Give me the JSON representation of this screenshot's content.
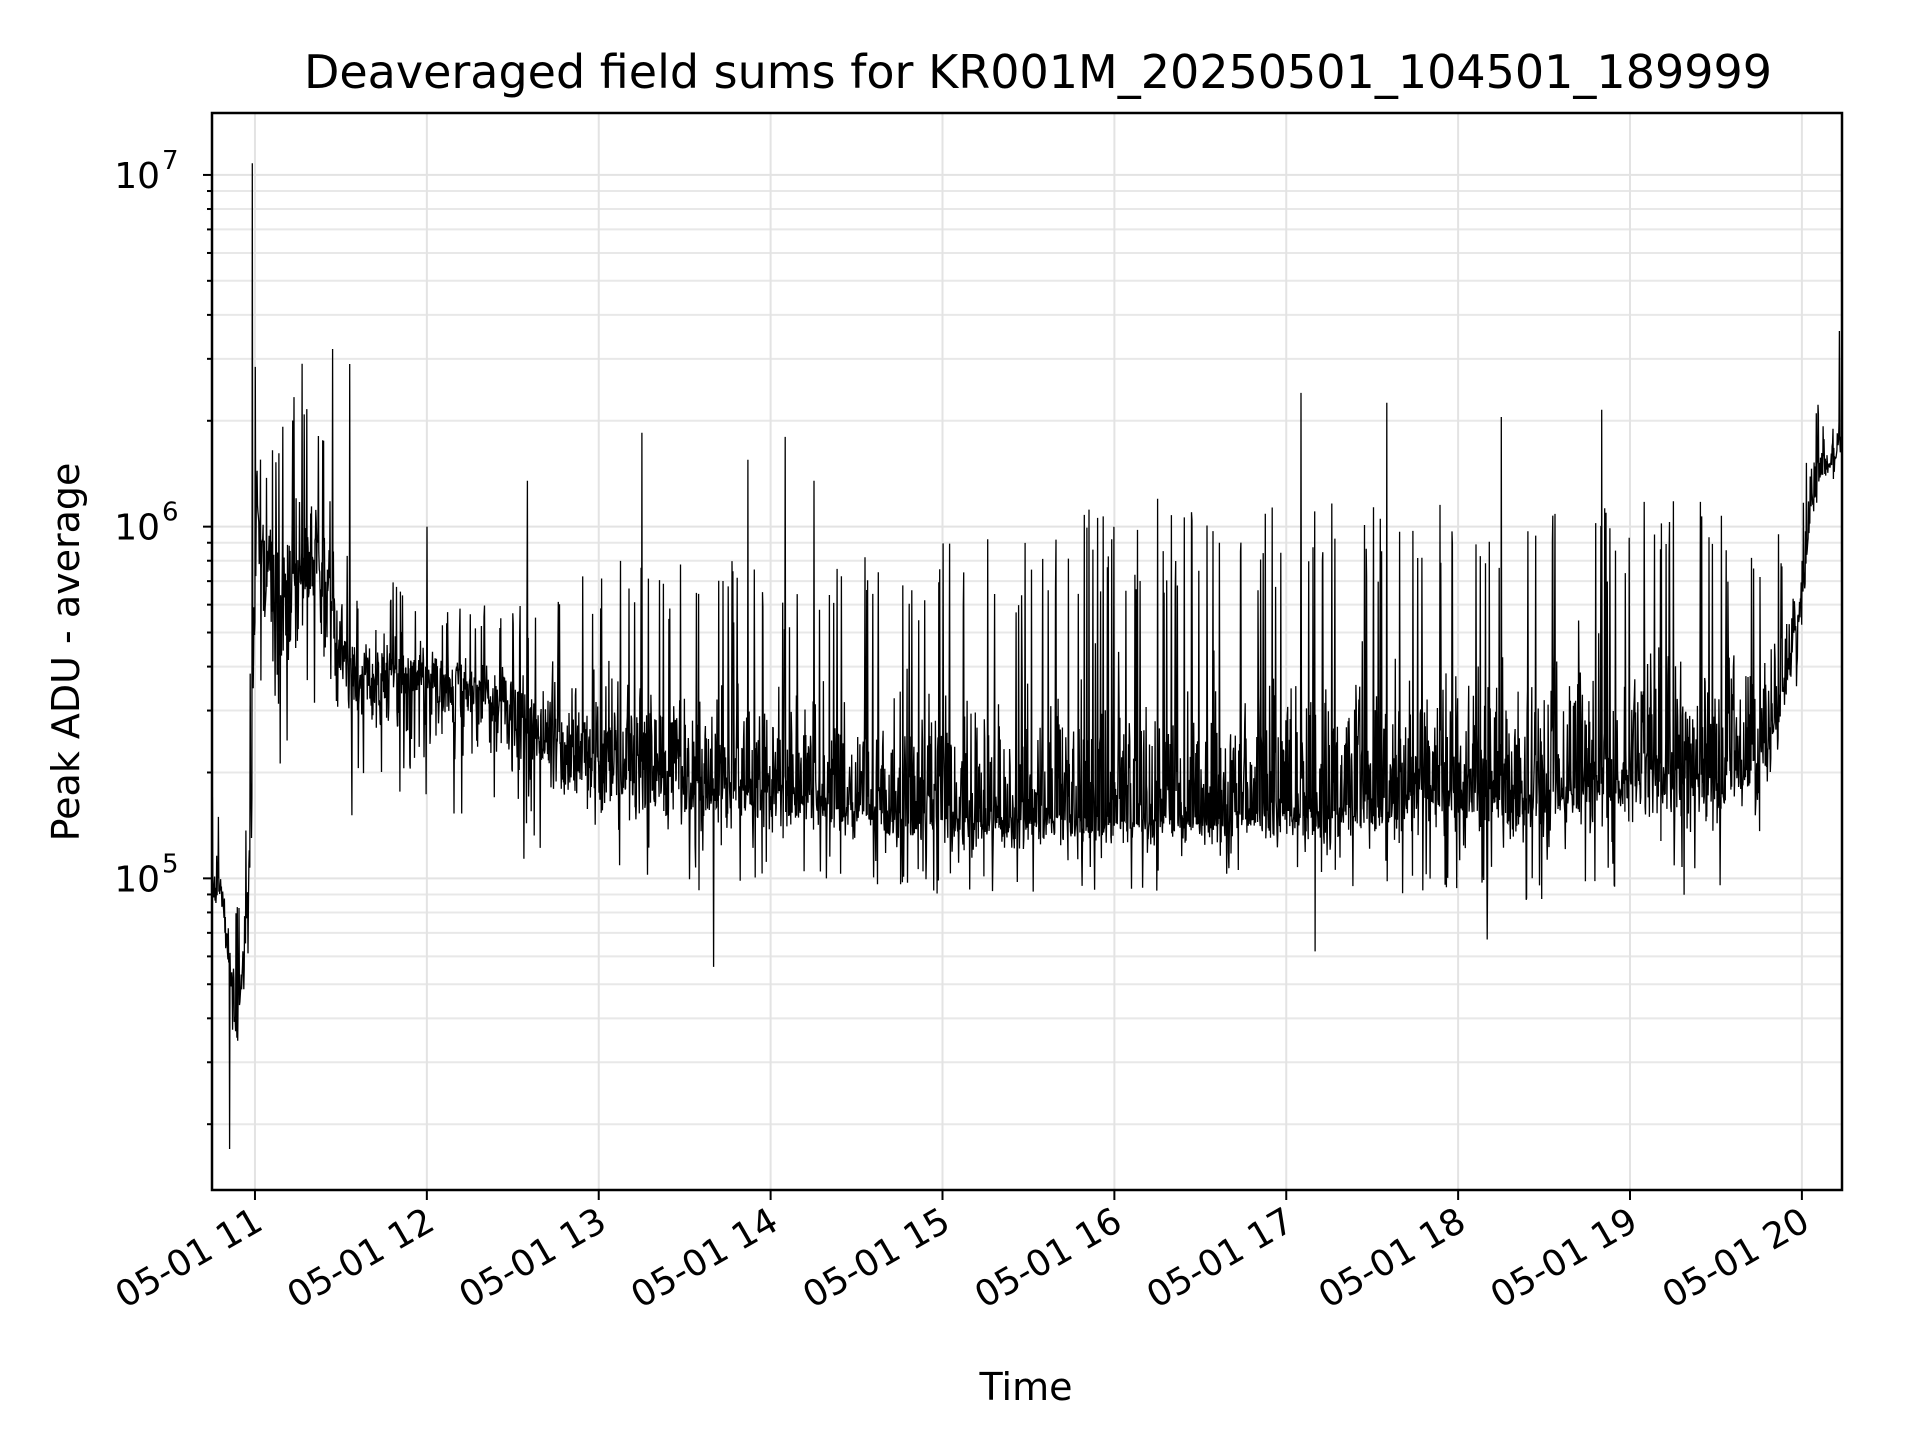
{
  "chart_data": {
    "type": "line",
    "title": "Deaveraged field sums for KR001M_20250501_104501_189999",
    "xlabel": "Time",
    "ylabel": "Peak ADU - average",
    "y_scale": "log",
    "xlim": [
      "2025-05-01 10:45",
      "2025-05-01 20:14"
    ],
    "ylim": [
      13000,
      15000000
    ],
    "grid": "major and minor, both axes",
    "line_color": "#000000",
    "x_ticks": [
      "2025-05-01 11:00",
      "2025-05-01 12:00",
      "2025-05-01 13:00",
      "2025-05-01 14:00",
      "2025-05-01 15:00",
      "2025-05-01 16:00",
      "2025-05-01 17:00",
      "2025-05-01 18:00",
      "2025-05-01 19:00",
      "2025-05-01 20:00"
    ],
    "x_tick_labels": [
      "05-01 11",
      "05-01 12",
      "05-01 13",
      "05-01 14",
      "05-01 15",
      "05-01 16",
      "05-01 17",
      "05-01 18",
      "05-01 19",
      "05-01 20"
    ],
    "y_ticks": [
      {
        "value": 100000,
        "base": "10",
        "exp": "5"
      },
      {
        "value": 1000000,
        "base": "10",
        "exp": "6"
      },
      {
        "value": 10000000,
        "base": "10",
        "exp": "7"
      }
    ],
    "x": [
      "2025-05-01 10:45",
      "2025-05-01 10:48",
      "2025-05-01 10:50",
      "2025-05-01 10:52",
      "2025-05-01 10:54",
      "2025-05-01 10:56",
      "2025-05-01 10:58",
      "2025-05-01 10:59",
      "2025-05-01 11:00",
      "2025-05-01 11:03",
      "2025-05-01 11:06",
      "2025-05-01 11:09",
      "2025-05-01 11:12",
      "2025-05-01 11:15",
      "2025-05-01 11:18",
      "2025-05-01 11:21",
      "2025-05-01 11:24",
      "2025-05-01 11:27",
      "2025-05-01 11:30",
      "2025-05-01 11:33",
      "2025-05-01 11:36",
      "2025-05-01 11:40",
      "2025-05-01 11:45",
      "2025-05-01 11:50",
      "2025-05-01 11:55",
      "2025-05-01 12:00",
      "2025-05-01 12:05",
      "2025-05-01 12:10",
      "2025-05-01 12:15",
      "2025-05-01 12:20",
      "2025-05-01 12:25",
      "2025-05-01 12:30",
      "2025-05-01 12:35",
      "2025-05-01 12:40",
      "2025-05-01 12:45",
      "2025-05-01 12:50",
      "2025-05-01 12:55",
      "2025-05-01 13:00",
      "2025-05-01 13:10",
      "2025-05-01 13:20",
      "2025-05-01 13:30",
      "2025-05-01 13:40",
      "2025-05-01 13:50",
      "2025-05-01 14:00",
      "2025-05-01 14:10",
      "2025-05-01 14:20",
      "2025-05-01 14:30",
      "2025-05-01 14:40",
      "2025-05-01 14:50",
      "2025-05-01 15:00",
      "2025-05-01 15:15",
      "2025-05-01 15:30",
      "2025-05-01 15:45",
      "2025-05-01 16:00",
      "2025-05-01 16:15",
      "2025-05-01 16:30",
      "2025-05-01 16:45",
      "2025-05-01 17:00",
      "2025-05-01 17:15",
      "2025-05-01 17:30",
      "2025-05-01 17:45",
      "2025-05-01 18:00",
      "2025-05-01 18:15",
      "2025-05-01 18:30",
      "2025-05-01 18:45",
      "2025-05-01 19:00",
      "2025-05-01 19:15",
      "2025-05-01 19:30",
      "2025-05-01 19:45",
      "2025-05-01 19:50",
      "2025-05-01 19:55",
      "2025-05-01 20:00",
      "2025-05-01 20:03",
      "2025-05-01 20:06",
      "2025-05-01 20:09",
      "2025-05-01 20:12",
      "2025-05-01 20:14"
    ],
    "y_center": [
      100000,
      90000,
      70000,
      50000,
      40000,
      60000,
      90000,
      200000,
      1000000,
      900000,
      700000,
      600000,
      650000,
      700000,
      800000,
      900000,
      700000,
      550000,
      450000,
      400000,
      380000,
      360000,
      380000,
      390000,
      380000,
      370000,
      360000,
      350000,
      340000,
      320000,
      300000,
      290000,
      270000,
      260000,
      250000,
      240000,
      230000,
      220000,
      210000,
      200000,
      190000,
      190000,
      180000,
      180000,
      175000,
      170000,
      165000,
      160000,
      160000,
      155000,
      150000,
      150000,
      150000,
      150000,
      150000,
      150000,
      155000,
      160000,
      160000,
      170000,
      180000,
      180000,
      170000,
      180000,
      190000,
      200000,
      200000,
      200000,
      220000,
      280000,
      400000,
      600000,
      1100000,
      1400000,
      1500000,
      1600000,
      1700000
    ],
    "y_low": [
      70000,
      60000,
      40000,
      30000,
      20000,
      40000,
      60000,
      100000,
      400000,
      300000,
      250000,
      200000,
      150000,
      200000,
      250000,
      300000,
      250000,
      200000,
      150000,
      150000,
      150000,
      150000,
      150000,
      150000,
      150000,
      140000,
      140000,
      130000,
      130000,
      120000,
      120000,
      110000,
      110000,
      105000,
      100000,
      100000,
      95000,
      95000,
      90000,
      90000,
      90000,
      90000,
      90000,
      90000,
      90000,
      90000,
      90000,
      90000,
      90000,
      90000,
      90000,
      90000,
      90000,
      90000,
      90000,
      90000,
      90000,
      90000,
      90000,
      90000,
      90000,
      85000,
      85000,
      85000,
      85000,
      85000,
      85000,
      85000,
      100000,
      150000,
      250000,
      400000,
      1000000,
      1200000,
      1300000,
      1400000,
      1500000
    ],
    "y_high": [
      200000,
      150000,
      120000,
      100000,
      90000,
      120000,
      200000,
      1500000,
      3000000,
      2500000,
      2000000,
      2000000,
      2500000,
      3000000,
      3000000,
      2500000,
      2000000,
      1000000,
      900000,
      800000,
      700000,
      700000,
      700000,
      700000,
      650000,
      650000,
      600000,
      600000,
      600000,
      600000,
      600000,
      600000,
      600000,
      650000,
      700000,
      700000,
      750000,
      800000,
      800000,
      800000,
      800000,
      800000,
      800000,
      800000,
      800000,
      800000,
      900000,
      900000,
      900000,
      900000,
      950000,
      1000000,
      1100000,
      1200000,
      1200000,
      1200000,
      1200000,
      1200000,
      1200000,
      1200000,
      1200000,
      1200000,
      1200000,
      1200000,
      1200000,
      1200000,
      1200000,
      1200000,
      1100000,
      1000000,
      900000,
      1200000,
      2500000,
      2200000,
      2000000,
      2500000,
      3000000
    ],
    "spikes": [
      {
        "x": "2025-05-01 10:59",
        "y": 10800000
      },
      {
        "x": "2025-05-01 11:27",
        "y": 3200000
      },
      {
        "x": "2025-05-01 11:33",
        "y": 2900000
      },
      {
        "x": "2025-05-01 12:00",
        "y": 1000000
      },
      {
        "x": "2025-05-01 12:35",
        "y": 1350000
      },
      {
        "x": "2025-05-01 13:15",
        "y": 1850000
      },
      {
        "x": "2025-05-01 13:52",
        "y": 1550000
      },
      {
        "x": "2025-05-01 14:05",
        "y": 1800000
      },
      {
        "x": "2025-05-01 14:15",
        "y": 1350000
      },
      {
        "x": "2025-05-01 16:15",
        "y": 1200000
      },
      {
        "x": "2025-05-01 17:05",
        "y": 2400000
      },
      {
        "x": "2025-05-01 17:35",
        "y": 2250000
      },
      {
        "x": "2025-05-01 18:15",
        "y": 2050000
      },
      {
        "x": "2025-05-01 18:50",
        "y": 2150000
      },
      {
        "x": "2025-05-01 20:13",
        "y": 3600000
      },
      {
        "x": "2025-05-01 10:51",
        "y": 17000
      },
      {
        "x": "2025-05-01 13:40",
        "y": 56000
      },
      {
        "x": "2025-05-01 17:10",
        "y": 62000
      },
      {
        "x": "2025-05-01 18:10",
        "y": 67000
      }
    ]
  }
}
